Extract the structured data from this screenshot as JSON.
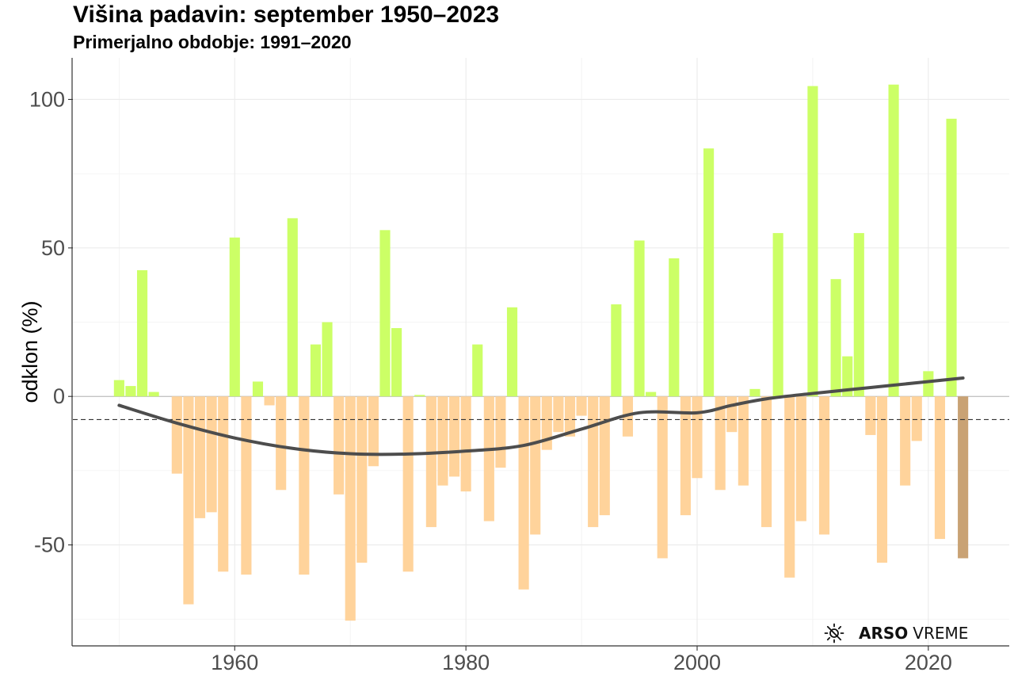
{
  "header": {
    "title": "Višina padavin: september 1950–2023",
    "subtitle": "Primerjalno obdobje: 1991–2020"
  },
  "logo": {
    "icon": "weather-sun-icon",
    "brand": "ARSO",
    "suffix": "VREME"
  },
  "chart_data": {
    "type": "bar",
    "title": "Višina padavin: september 1950–2023",
    "subtitle": "Primerjalno obdobje: 1991–2020",
    "xlabel": "",
    "ylabel": "odklon (%)",
    "xlim": [
      1946,
      2027
    ],
    "ylim": [
      -84,
      114
    ],
    "xticks": [
      1960,
      1980,
      2000,
      2020
    ],
    "yticks": [
      -50,
      0,
      50,
      100
    ],
    "ytick_labels": [
      "-50",
      "0",
      "50",
      "100"
    ],
    "grid": true,
    "legend": "none",
    "colors": {
      "positive": "#ccff66",
      "negative": "#ffd39b",
      "latest": "#c9a274",
      "trend": "#4d4d4d",
      "reference": "#333333",
      "zero": "#b3b3b3"
    },
    "x": [
      1950,
      1951,
      1952,
      1953,
      1954,
      1955,
      1956,
      1957,
      1958,
      1959,
      1960,
      1961,
      1962,
      1963,
      1964,
      1965,
      1966,
      1967,
      1968,
      1969,
      1970,
      1971,
      1972,
      1973,
      1974,
      1975,
      1976,
      1977,
      1978,
      1979,
      1980,
      1981,
      1982,
      1983,
      1984,
      1985,
      1986,
      1987,
      1988,
      1989,
      1990,
      1991,
      1992,
      1993,
      1994,
      1995,
      1996,
      1997,
      1998,
      1999,
      2000,
      2001,
      2002,
      2003,
      2004,
      2005,
      2006,
      2007,
      2008,
      2009,
      2010,
      2011,
      2012,
      2013,
      2014,
      2015,
      2016,
      2017,
      2018,
      2019,
      2020,
      2021,
      2022,
      2023
    ],
    "values": [
      5.5,
      3.5,
      42.5,
      1.5,
      0,
      -26,
      -70,
      -41,
      -39,
      -59,
      53.5,
      -60,
      5,
      -3,
      -31.5,
      60,
      -60,
      17.5,
      25,
      -33,
      -75.5,
      -56,
      -23.5,
      56,
      23,
      -59,
      0.5,
      -44,
      -30,
      -27,
      -32,
      17.5,
      -42,
      -24,
      30,
      -65,
      -46.5,
      -18,
      -12,
      -13.5,
      -6.5,
      -44,
      -40,
      31,
      -13.5,
      52.5,
      1.5,
      -54.5,
      46.5,
      -40,
      -27.5,
      83.5,
      -31.5,
      -12,
      -30,
      2.5,
      -44,
      55,
      -61,
      -42,
      104.5,
      -46.5,
      39.5,
      13.5,
      55,
      -13,
      -56,
      105,
      -30,
      -15,
      8.5,
      -48,
      93.5,
      -54.5
    ],
    "reference_line": -7.8,
    "trend": [
      [
        1950,
        -3
      ],
      [
        1955,
        -9
      ],
      [
        1960,
        -14
      ],
      [
        1965,
        -17.5
      ],
      [
        1970,
        -19.3
      ],
      [
        1975,
        -19.4
      ],
      [
        1980,
        -18.4
      ],
      [
        1985,
        -16.5
      ],
      [
        1990,
        -11
      ],
      [
        1995,
        -5.5
      ],
      [
        2000,
        -5.5
      ],
      [
        2003,
        -3
      ],
      [
        2006,
        -0.8
      ],
      [
        2010,
        1
      ],
      [
        2015,
        3
      ],
      [
        2020,
        5
      ],
      [
        2023,
        6.2
      ]
    ]
  }
}
